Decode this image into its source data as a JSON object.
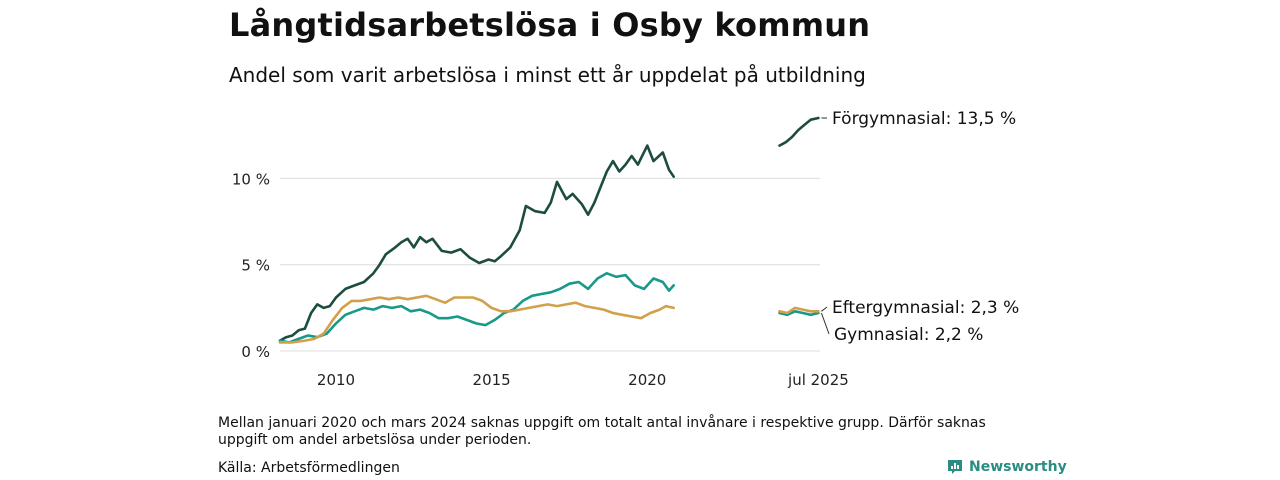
{
  "header": {
    "title": "Långtidsarbetslösa i Osby kommun",
    "subtitle": "Andel som varit arbetslösa i minst ett år uppdelat på utbildning"
  },
  "footer": {
    "note": "Mellan januari 2020 och mars 2024 saknas uppgift om totalt antal invånare i respektive grupp. Därför saknas uppgift om andel arbetslösa under perioden.",
    "source": "Källa: Arbetsförmedlingen",
    "brand": "Newsworthy"
  },
  "chart_data": {
    "type": "line",
    "title": "Långtidsarbetslösa i Osby kommun",
    "subtitle": "Andel som varit arbetslösa i minst ett år uppdelat på utbildning",
    "xlim": [
      2008.2,
      2025.55
    ],
    "ylim": [
      0,
      13.5
    ],
    "y_ticks": [
      {
        "value": 0,
        "label": "0 %"
      },
      {
        "value": 5,
        "label": "5 %"
      },
      {
        "value": 10,
        "label": "10 %"
      }
    ],
    "x_ticks": [
      {
        "value": 2010,
        "label": "2010"
      },
      {
        "value": 2015,
        "label": "2015"
      },
      {
        "value": 2020,
        "label": "2020"
      },
      {
        "value": 2025.5,
        "label": "jul 2025"
      }
    ],
    "grid": "horizontal",
    "series": [
      {
        "name": "Förgymnasial",
        "end_label": "Förgymnasial: 13,5 %",
        "color": "#1d4d41",
        "segments": [
          [
            [
              2008.2,
              0.6
            ],
            [
              2008.4,
              0.8
            ],
            [
              2008.6,
              0.9
            ],
            [
              2008.8,
              1.2
            ],
            [
              2009.0,
              1.3
            ],
            [
              2009.2,
              2.2
            ],
            [
              2009.4,
              2.7
            ],
            [
              2009.6,
              2.5
            ],
            [
              2009.8,
              2.6
            ],
            [
              2010.0,
              3.1
            ],
            [
              2010.3,
              3.6
            ],
            [
              2010.6,
              3.8
            ],
            [
              2010.9,
              4.0
            ],
            [
              2011.2,
              4.5
            ],
            [
              2011.4,
              5.0
            ],
            [
              2011.6,
              5.6
            ],
            [
              2011.9,
              6.0
            ],
            [
              2012.1,
              6.3
            ],
            [
              2012.3,
              6.5
            ],
            [
              2012.5,
              6.0
            ],
            [
              2012.7,
              6.6
            ],
            [
              2012.9,
              6.3
            ],
            [
              2013.1,
              6.5
            ],
            [
              2013.4,
              5.8
            ],
            [
              2013.7,
              5.7
            ],
            [
              2014.0,
              5.9
            ],
            [
              2014.3,
              5.4
            ],
            [
              2014.6,
              5.1
            ],
            [
              2014.9,
              5.3
            ],
            [
              2015.1,
              5.2
            ],
            [
              2015.3,
              5.5
            ],
            [
              2015.6,
              6.0
            ],
            [
              2015.9,
              7.0
            ],
            [
              2016.1,
              8.4
            ],
            [
              2016.4,
              8.1
            ],
            [
              2016.7,
              8.0
            ],
            [
              2016.9,
              8.6
            ],
            [
              2017.1,
              9.8
            ],
            [
              2017.4,
              8.8
            ],
            [
              2017.6,
              9.1
            ],
            [
              2017.9,
              8.5
            ],
            [
              2018.1,
              7.9
            ],
            [
              2018.3,
              8.6
            ],
            [
              2018.5,
              9.5
            ],
            [
              2018.7,
              10.4
            ],
            [
              2018.9,
              11.0
            ],
            [
              2019.1,
              10.4
            ],
            [
              2019.3,
              10.8
            ],
            [
              2019.5,
              11.3
            ],
            [
              2019.7,
              10.8
            ],
            [
              2020.0,
              11.9
            ],
            [
              2020.2,
              11.0
            ],
            [
              2020.5,
              11.5
            ],
            [
              2020.7,
              10.5
            ],
            [
              2020.85,
              10.1
            ]
          ],
          [
            [
              2024.25,
              11.9
            ],
            [
              2024.45,
              12.1
            ],
            [
              2024.65,
              12.4
            ],
            [
              2024.85,
              12.8
            ],
            [
              2025.05,
              13.1
            ],
            [
              2025.25,
              13.4
            ],
            [
              2025.5,
              13.5
            ]
          ]
        ]
      },
      {
        "name": "Gymnasial",
        "end_label": "Gymnasial:  2,2 %",
        "color": "#18998a",
        "segments": [
          [
            [
              2008.2,
              0.6
            ],
            [
              2008.5,
              0.5
            ],
            [
              2008.8,
              0.7
            ],
            [
              2009.1,
              0.9
            ],
            [
              2009.4,
              0.8
            ],
            [
              2009.7,
              1.0
            ],
            [
              2010.0,
              1.6
            ],
            [
              2010.3,
              2.1
            ],
            [
              2010.6,
              2.3
            ],
            [
              2010.9,
              2.5
            ],
            [
              2011.2,
              2.4
            ],
            [
              2011.5,
              2.6
            ],
            [
              2011.8,
              2.5
            ],
            [
              2012.1,
              2.6
            ],
            [
              2012.4,
              2.3
            ],
            [
              2012.7,
              2.4
            ],
            [
              2013.0,
              2.2
            ],
            [
              2013.3,
              1.9
            ],
            [
              2013.6,
              1.9
            ],
            [
              2013.9,
              2.0
            ],
            [
              2014.2,
              1.8
            ],
            [
              2014.5,
              1.6
            ],
            [
              2014.8,
              1.5
            ],
            [
              2015.1,
              1.8
            ],
            [
              2015.4,
              2.2
            ],
            [
              2015.7,
              2.4
            ],
            [
              2016.0,
              2.9
            ],
            [
              2016.3,
              3.2
            ],
            [
              2016.6,
              3.3
            ],
            [
              2016.9,
              3.4
            ],
            [
              2017.2,
              3.6
            ],
            [
              2017.5,
              3.9
            ],
            [
              2017.8,
              4.0
            ],
            [
              2018.1,
              3.6
            ],
            [
              2018.4,
              4.2
            ],
            [
              2018.7,
              4.5
            ],
            [
              2019.0,
              4.3
            ],
            [
              2019.3,
              4.4
            ],
            [
              2019.6,
              3.8
            ],
            [
              2019.9,
              3.6
            ],
            [
              2020.2,
              4.2
            ],
            [
              2020.5,
              4.0
            ],
            [
              2020.7,
              3.5
            ],
            [
              2020.85,
              3.8
            ]
          ],
          [
            [
              2024.25,
              2.2
            ],
            [
              2024.5,
              2.1
            ],
            [
              2024.75,
              2.3
            ],
            [
              2025.0,
              2.2
            ],
            [
              2025.25,
              2.1
            ],
            [
              2025.5,
              2.2
            ]
          ]
        ]
      },
      {
        "name": "Eftergymnasial",
        "end_label": "Eftergymnasial:  2,3 %",
        "color": "#d2a04a",
        "segments": [
          [
            [
              2008.2,
              0.5
            ],
            [
              2008.6,
              0.5
            ],
            [
              2009.0,
              0.6
            ],
            [
              2009.3,
              0.7
            ],
            [
              2009.6,
              1.0
            ],
            [
              2009.9,
              1.8
            ],
            [
              2010.2,
              2.5
            ],
            [
              2010.5,
              2.9
            ],
            [
              2010.8,
              2.9
            ],
            [
              2011.1,
              3.0
            ],
            [
              2011.4,
              3.1
            ],
            [
              2011.7,
              3.0
            ],
            [
              2012.0,
              3.1
            ],
            [
              2012.3,
              3.0
            ],
            [
              2012.6,
              3.1
            ],
            [
              2012.9,
              3.2
            ],
            [
              2013.2,
              3.0
            ],
            [
              2013.5,
              2.8
            ],
            [
              2013.8,
              3.1
            ],
            [
              2014.1,
              3.1
            ],
            [
              2014.4,
              3.1
            ],
            [
              2014.7,
              2.9
            ],
            [
              2015.0,
              2.5
            ],
            [
              2015.3,
              2.3
            ],
            [
              2015.6,
              2.3
            ],
            [
              2015.9,
              2.4
            ],
            [
              2016.2,
              2.5
            ],
            [
              2016.5,
              2.6
            ],
            [
              2016.8,
              2.7
            ],
            [
              2017.1,
              2.6
            ],
            [
              2017.4,
              2.7
            ],
            [
              2017.7,
              2.8
            ],
            [
              2018.0,
              2.6
            ],
            [
              2018.3,
              2.5
            ],
            [
              2018.6,
              2.4
            ],
            [
              2018.9,
              2.2
            ],
            [
              2019.2,
              2.1
            ],
            [
              2019.5,
              2.0
            ],
            [
              2019.8,
              1.9
            ],
            [
              2020.1,
              2.2
            ],
            [
              2020.4,
              2.4
            ],
            [
              2020.6,
              2.6
            ],
            [
              2020.85,
              2.5
            ]
          ],
          [
            [
              2024.25,
              2.3
            ],
            [
              2024.5,
              2.2
            ],
            [
              2024.75,
              2.5
            ],
            [
              2025.0,
              2.4
            ],
            [
              2025.25,
              2.3
            ],
            [
              2025.5,
              2.3
            ]
          ]
        ]
      }
    ]
  }
}
